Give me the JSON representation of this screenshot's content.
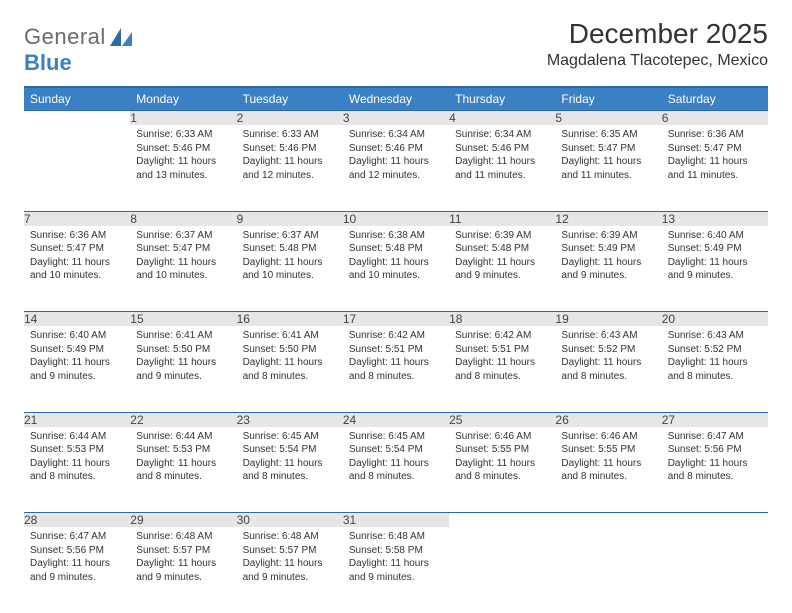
{
  "brand": {
    "part1": "General",
    "part2": "Blue"
  },
  "title": "December 2025",
  "location": "Magdalena Tlacotepec, Mexico",
  "colors": {
    "header_bg": "#3b7fc4",
    "header_text": "#ffffff",
    "daynum_bg": "#e6e6e6",
    "rule": "#2c6aa8",
    "body_text": "#333333",
    "logo_gray": "#6b6b6b",
    "logo_blue": "#3b7fc4",
    "page_bg": "#ffffff"
  },
  "typography": {
    "title_fontsize": 28,
    "location_fontsize": 16,
    "dayheader_fontsize": 12,
    "daynum_fontsize": 12,
    "cell_fontsize": 10
  },
  "day_headers": [
    "Sunday",
    "Monday",
    "Tuesday",
    "Wednesday",
    "Thursday",
    "Friday",
    "Saturday"
  ],
  "weeks": [
    [
      null,
      {
        "n": "1",
        "sunrise": "6:33 AM",
        "sunset": "5:46 PM",
        "daylight": "11 hours and 13 minutes."
      },
      {
        "n": "2",
        "sunrise": "6:33 AM",
        "sunset": "5:46 PM",
        "daylight": "11 hours and 12 minutes."
      },
      {
        "n": "3",
        "sunrise": "6:34 AM",
        "sunset": "5:46 PM",
        "daylight": "11 hours and 12 minutes."
      },
      {
        "n": "4",
        "sunrise": "6:34 AM",
        "sunset": "5:46 PM",
        "daylight": "11 hours and 11 minutes."
      },
      {
        "n": "5",
        "sunrise": "6:35 AM",
        "sunset": "5:47 PM",
        "daylight": "11 hours and 11 minutes."
      },
      {
        "n": "6",
        "sunrise": "6:36 AM",
        "sunset": "5:47 PM",
        "daylight": "11 hours and 11 minutes."
      }
    ],
    [
      {
        "n": "7",
        "sunrise": "6:36 AM",
        "sunset": "5:47 PM",
        "daylight": "11 hours and 10 minutes."
      },
      {
        "n": "8",
        "sunrise": "6:37 AM",
        "sunset": "5:47 PM",
        "daylight": "11 hours and 10 minutes."
      },
      {
        "n": "9",
        "sunrise": "6:37 AM",
        "sunset": "5:48 PM",
        "daylight": "11 hours and 10 minutes."
      },
      {
        "n": "10",
        "sunrise": "6:38 AM",
        "sunset": "5:48 PM",
        "daylight": "11 hours and 10 minutes."
      },
      {
        "n": "11",
        "sunrise": "6:39 AM",
        "sunset": "5:48 PM",
        "daylight": "11 hours and 9 minutes."
      },
      {
        "n": "12",
        "sunrise": "6:39 AM",
        "sunset": "5:49 PM",
        "daylight": "11 hours and 9 minutes."
      },
      {
        "n": "13",
        "sunrise": "6:40 AM",
        "sunset": "5:49 PM",
        "daylight": "11 hours and 9 minutes."
      }
    ],
    [
      {
        "n": "14",
        "sunrise": "6:40 AM",
        "sunset": "5:49 PM",
        "daylight": "11 hours and 9 minutes."
      },
      {
        "n": "15",
        "sunrise": "6:41 AM",
        "sunset": "5:50 PM",
        "daylight": "11 hours and 9 minutes."
      },
      {
        "n": "16",
        "sunrise": "6:41 AM",
        "sunset": "5:50 PM",
        "daylight": "11 hours and 8 minutes."
      },
      {
        "n": "17",
        "sunrise": "6:42 AM",
        "sunset": "5:51 PM",
        "daylight": "11 hours and 8 minutes."
      },
      {
        "n": "18",
        "sunrise": "6:42 AM",
        "sunset": "5:51 PM",
        "daylight": "11 hours and 8 minutes."
      },
      {
        "n": "19",
        "sunrise": "6:43 AM",
        "sunset": "5:52 PM",
        "daylight": "11 hours and 8 minutes."
      },
      {
        "n": "20",
        "sunrise": "6:43 AM",
        "sunset": "5:52 PM",
        "daylight": "11 hours and 8 minutes."
      }
    ],
    [
      {
        "n": "21",
        "sunrise": "6:44 AM",
        "sunset": "5:53 PM",
        "daylight": "11 hours and 8 minutes."
      },
      {
        "n": "22",
        "sunrise": "6:44 AM",
        "sunset": "5:53 PM",
        "daylight": "11 hours and 8 minutes."
      },
      {
        "n": "23",
        "sunrise": "6:45 AM",
        "sunset": "5:54 PM",
        "daylight": "11 hours and 8 minutes."
      },
      {
        "n": "24",
        "sunrise": "6:45 AM",
        "sunset": "5:54 PM",
        "daylight": "11 hours and 8 minutes."
      },
      {
        "n": "25",
        "sunrise": "6:46 AM",
        "sunset": "5:55 PM",
        "daylight": "11 hours and 8 minutes."
      },
      {
        "n": "26",
        "sunrise": "6:46 AM",
        "sunset": "5:55 PM",
        "daylight": "11 hours and 8 minutes."
      },
      {
        "n": "27",
        "sunrise": "6:47 AM",
        "sunset": "5:56 PM",
        "daylight": "11 hours and 8 minutes."
      }
    ],
    [
      {
        "n": "28",
        "sunrise": "6:47 AM",
        "sunset": "5:56 PM",
        "daylight": "11 hours and 9 minutes."
      },
      {
        "n": "29",
        "sunrise": "6:48 AM",
        "sunset": "5:57 PM",
        "daylight": "11 hours and 9 minutes."
      },
      {
        "n": "30",
        "sunrise": "6:48 AM",
        "sunset": "5:57 PM",
        "daylight": "11 hours and 9 minutes."
      },
      {
        "n": "31",
        "sunrise": "6:48 AM",
        "sunset": "5:58 PM",
        "daylight": "11 hours and 9 minutes."
      },
      null,
      null,
      null
    ]
  ],
  "labels": {
    "sunrise": "Sunrise:",
    "sunset": "Sunset:",
    "daylight": "Daylight:"
  }
}
